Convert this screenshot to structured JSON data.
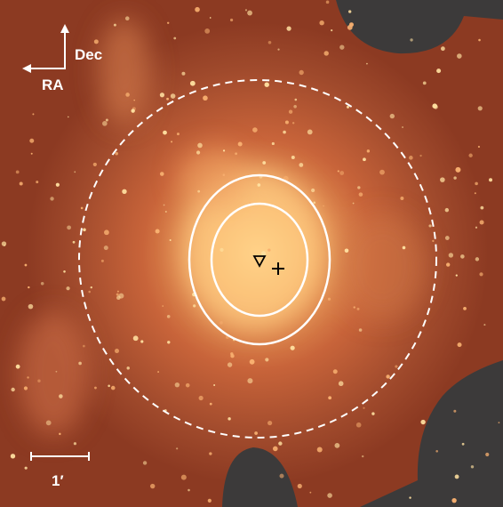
{
  "compass": {
    "north": "Dec",
    "east": "RA"
  },
  "scale_bar": {
    "label": "1′"
  }
}
